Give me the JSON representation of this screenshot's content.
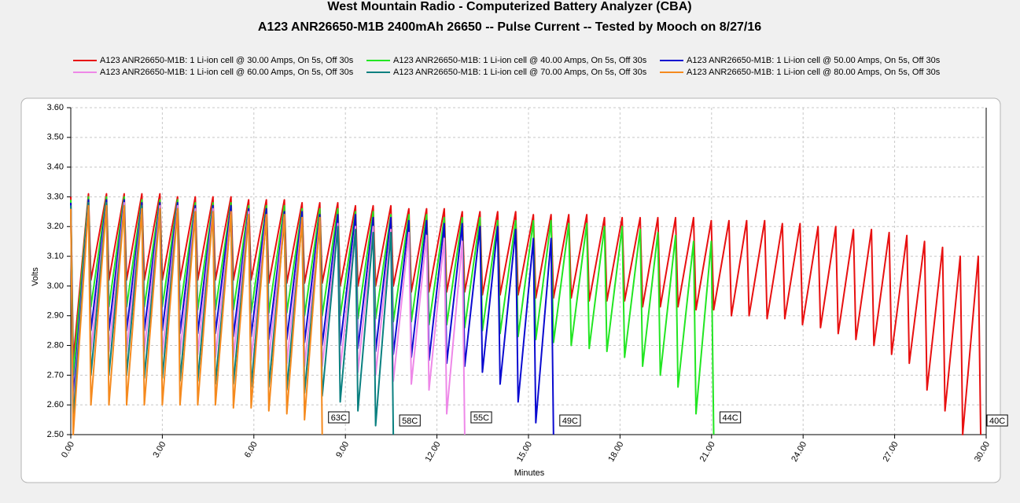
{
  "chart_data": {
    "type": "line",
    "title": "West Mountain Radio - Computerized Battery Analyzer (CBA)",
    "subtitle": "A123 ANR26650-M1B 2400mAh 26650 -- Pulse Current -- Tested by Mooch on 8/27/16",
    "x_label": "Minutes",
    "y_label": "Volts",
    "xlim": [
      0,
      30
    ],
    "ylim": [
      2.5,
      3.6
    ],
    "grid": true,
    "xticks": [
      {
        "value": 0,
        "label": "0.00"
      },
      {
        "value": 3,
        "label": "3.00"
      },
      {
        "value": 6,
        "label": "6.00"
      },
      {
        "value": 9,
        "label": "9.00"
      },
      {
        "value": 12,
        "label": "12.00"
      },
      {
        "value": 15,
        "label": "15.00"
      },
      {
        "value": 18,
        "label": "18.00"
      },
      {
        "value": 21,
        "label": "21.00"
      },
      {
        "value": 24,
        "label": "24.00"
      },
      {
        "value": 27,
        "label": "27.00"
      },
      {
        "value": 30,
        "label": "30.00"
      }
    ],
    "yticks": [
      {
        "value": 2.5,
        "label": "2.50"
      },
      {
        "value": 2.6,
        "label": "2.60"
      },
      {
        "value": 2.7,
        "label": "2.70"
      },
      {
        "value": 2.8,
        "label": "2.80"
      },
      {
        "value": 2.9,
        "label": "2.90"
      },
      {
        "value": 3.0,
        "label": "3.00"
      },
      {
        "value": 3.1,
        "label": "3.10"
      },
      {
        "value": 3.2,
        "label": "3.20"
      },
      {
        "value": 3.3,
        "label": "3.30"
      },
      {
        "value": 3.4,
        "label": "3.40"
      },
      {
        "value": 3.5,
        "label": "3.50"
      },
      {
        "value": 3.6,
        "label": "3.60"
      }
    ],
    "x": [
      0.0,
      0.08,
      0.58,
      0.66,
      1.17,
      1.25,
      1.75,
      1.83,
      2.33,
      2.41,
      2.92,
      3.0,
      3.5,
      3.58,
      4.08,
      4.16,
      4.66,
      4.74,
      5.25,
      5.33,
      5.83,
      5.91,
      6.41,
      6.49,
      7.0,
      7.08,
      7.58,
      7.66,
      8.16,
      8.24,
      8.75,
      8.83,
      9.33,
      9.41,
      9.91,
      9.99,
      10.49,
      10.57,
      11.08,
      11.16,
      11.66,
      11.74,
      12.24,
      12.32,
      12.83,
      12.91,
      13.41,
      13.49,
      13.99,
      14.07,
      14.58,
      14.66,
      15.16,
      15.24,
      15.74,
      15.82,
      16.32,
      16.4,
      16.91,
      16.99,
      17.49,
      17.57,
      18.07,
      18.15,
      18.66,
      18.74,
      19.24,
      19.32,
      19.82,
      19.9,
      20.41,
      20.49,
      20.99,
      21.07,
      21.57,
      21.65,
      22.15,
      22.23,
      22.74,
      22.82,
      23.32,
      23.4,
      23.9,
      23.98,
      24.49,
      24.57,
      25.07,
      25.15,
      25.65,
      25.73,
      26.24,
      26.32,
      26.82,
      26.9,
      27.4,
      27.48,
      27.98,
      28.06,
      28.57,
      28.65,
      29.15,
      29.23,
      29.74,
      29.82
    ],
    "series": [
      {
        "name": "A123 ANR26650-M1B: 1 Li-ion cell @ 30.00 Amps, On 5s, Off 30s",
        "color": "#e81010",
        "end_label": "40C",
        "values": [
          3.3,
          2.75,
          3.31,
          3.02,
          3.31,
          3.02,
          3.31,
          3.02,
          3.31,
          3.02,
          3.31,
          3.02,
          3.3,
          3.02,
          3.3,
          3.02,
          3.3,
          3.02,
          3.3,
          3.02,
          3.29,
          3.02,
          3.29,
          3.01,
          3.29,
          3.01,
          3.28,
          3.01,
          3.28,
          3.01,
          3.28,
          3.0,
          3.27,
          3.0,
          3.27,
          3.0,
          3.27,
          3.0,
          3.26,
          2.98,
          3.26,
          2.98,
          3.26,
          2.98,
          3.25,
          2.98,
          3.25,
          2.97,
          3.25,
          2.97,
          3.25,
          2.97,
          3.24,
          2.96,
          3.24,
          2.96,
          3.24,
          2.96,
          3.24,
          2.95,
          3.23,
          2.95,
          3.23,
          2.95,
          3.23,
          2.93,
          3.23,
          2.93,
          3.23,
          2.93,
          3.23,
          2.92,
          3.22,
          2.92,
          3.22,
          2.9,
          3.22,
          2.9,
          3.22,
          2.89,
          3.21,
          2.89,
          3.21,
          2.87,
          3.2,
          2.86,
          3.2,
          2.84,
          3.19,
          2.82,
          3.19,
          2.8,
          3.18,
          2.77,
          3.17,
          2.74,
          3.15,
          2.65,
          3.13,
          2.58,
          3.1,
          2.5,
          3.1,
          2.5
        ]
      },
      {
        "name": "A123 ANR26650-M1B: 1 Li-ion cell @ 40.00 Amps, On 5s, Off 30s",
        "color": "#22e622",
        "end_label": "44C",
        "values": [
          3.29,
          2.7,
          3.3,
          2.93,
          3.3,
          2.93,
          3.3,
          2.93,
          3.29,
          2.93,
          3.29,
          2.93,
          3.29,
          2.92,
          3.28,
          2.92,
          3.28,
          2.92,
          3.28,
          2.92,
          3.27,
          2.91,
          3.27,
          2.91,
          3.27,
          2.91,
          3.26,
          2.9,
          3.26,
          2.9,
          3.26,
          2.9,
          3.25,
          2.89,
          3.25,
          2.89,
          3.24,
          2.88,
          3.24,
          2.88,
          3.24,
          2.87,
          3.23,
          2.87,
          3.23,
          2.86,
          3.23,
          2.85,
          3.22,
          2.84,
          3.22,
          2.83,
          3.22,
          2.82,
          3.22,
          2.81,
          3.21,
          2.8,
          3.21,
          2.79,
          3.2,
          2.78,
          3.2,
          2.76,
          3.19,
          2.73,
          3.18,
          2.7,
          3.17,
          2.66,
          3.15,
          2.57,
          3.15,
          2.5,
          null,
          null,
          null,
          null,
          null,
          null,
          null,
          null,
          null,
          null,
          null,
          null,
          null,
          null,
          null,
          null,
          null,
          null,
          null,
          null,
          null,
          null,
          null,
          null,
          null,
          null,
          null,
          null,
          null,
          null
        ]
      },
      {
        "name": "A123 ANR26650-M1B: 1 Li-ion cell @ 50.00 Amps, On 5s, Off 30s",
        "color": "#0a0ad0",
        "end_label": "49C",
        "values": [
          3.28,
          2.62,
          3.29,
          2.85,
          3.29,
          2.85,
          3.29,
          2.85,
          3.28,
          2.85,
          3.28,
          2.85,
          3.28,
          2.84,
          3.27,
          2.84,
          3.27,
          2.84,
          3.27,
          2.83,
          3.26,
          2.83,
          3.26,
          2.82,
          3.25,
          2.82,
          3.25,
          2.81,
          3.24,
          2.8,
          3.24,
          2.8,
          3.24,
          2.79,
          3.23,
          2.78,
          3.23,
          2.77,
          3.22,
          2.76,
          3.22,
          2.75,
          3.21,
          2.74,
          3.21,
          2.73,
          3.2,
          2.71,
          3.2,
          2.67,
          3.19,
          2.61,
          3.16,
          2.54,
          3.16,
          2.5,
          null,
          null,
          null,
          null,
          null,
          null,
          null,
          null,
          null,
          null,
          null,
          null,
          null,
          null,
          null,
          null,
          null,
          null,
          null,
          null,
          null,
          null,
          null,
          null,
          null,
          null,
          null,
          null,
          null,
          null,
          null,
          null,
          null,
          null,
          null,
          null,
          null,
          null,
          null,
          null,
          null,
          null,
          null,
          null,
          null,
          null,
          null,
          null
        ]
      },
      {
        "name": "A123 ANR26650-M1B: 1 Li-ion cell @ 60.00 Amps, On 5s, Off 30s",
        "color": "#ee88e8",
        "end_label": "55C",
        "values": [
          3.27,
          2.58,
          3.28,
          2.78,
          3.28,
          2.78,
          3.28,
          2.78,
          3.27,
          2.78,
          3.27,
          2.77,
          3.27,
          2.77,
          3.26,
          2.77,
          3.26,
          2.76,
          3.25,
          2.76,
          3.25,
          2.75,
          3.24,
          2.75,
          3.24,
          2.74,
          3.23,
          2.73,
          3.22,
          2.73,
          3.21,
          2.72,
          3.2,
          2.71,
          3.2,
          2.7,
          3.19,
          2.68,
          3.18,
          2.67,
          3.17,
          2.65,
          3.16,
          2.57,
          3.15,
          2.5,
          null,
          null,
          null,
          null,
          null,
          null,
          null,
          null,
          null,
          null,
          null,
          null,
          null,
          null,
          null,
          null,
          null,
          null,
          null,
          null,
          null,
          null,
          null,
          null,
          null,
          null,
          null,
          null,
          null,
          null,
          null,
          null,
          null,
          null,
          null,
          null,
          null,
          null,
          null,
          null,
          null,
          null,
          null,
          null,
          null,
          null,
          null,
          null,
          null,
          null,
          null,
          null,
          null,
          null,
          null,
          null,
          null,
          null
        ]
      },
      {
        "name": "A123 ANR26650-M1B: 1 Li-ion cell @ 70.00 Amps, On 5s, Off 30s",
        "color": "#0a8080",
        "end_label": "58C",
        "values": [
          3.27,
          2.55,
          3.28,
          2.7,
          3.28,
          2.7,
          3.27,
          2.7,
          3.27,
          2.69,
          3.26,
          2.69,
          3.26,
          2.68,
          3.25,
          2.68,
          3.25,
          2.67,
          3.24,
          2.67,
          3.24,
          2.66,
          3.23,
          2.66,
          3.22,
          2.65,
          3.22,
          2.64,
          3.21,
          2.63,
          3.2,
          2.61,
          3.19,
          2.58,
          3.18,
          2.53,
          3.18,
          2.5,
          null,
          null,
          null,
          null,
          null,
          null,
          null,
          null,
          null,
          null,
          null,
          null,
          null,
          null,
          null,
          null,
          null,
          null,
          null,
          null,
          null,
          null,
          null,
          null,
          null,
          null,
          null,
          null,
          null,
          null,
          null,
          null,
          null,
          null,
          null,
          null,
          null,
          null,
          null,
          null,
          null,
          null,
          null,
          null,
          null,
          null,
          null,
          null,
          null,
          null,
          null,
          null,
          null,
          null,
          null,
          null,
          null,
          null,
          null,
          null,
          null,
          null,
          null,
          null,
          null,
          null
        ]
      },
      {
        "name": "A123 ANR26650-M1B: 1 Li-ion cell @ 80.00 Amps, On 5s, Off 30s",
        "color": "#f58a1e",
        "end_label": "63C",
        "values": [
          3.26,
          2.5,
          3.27,
          2.6,
          3.27,
          2.6,
          3.27,
          2.6,
          3.26,
          2.6,
          3.26,
          2.6,
          3.26,
          2.6,
          3.25,
          2.6,
          3.25,
          2.6,
          3.25,
          2.59,
          3.24,
          2.59,
          3.24,
          2.58,
          3.24,
          2.57,
          3.23,
          2.55,
          3.23,
          2.5,
          null,
          null,
          null,
          null,
          null,
          null,
          null,
          null,
          null,
          null,
          null,
          null,
          null,
          null,
          null,
          null,
          null,
          null,
          null,
          null,
          null,
          null,
          null,
          null,
          null,
          null,
          null,
          null,
          null,
          null,
          null,
          null,
          null,
          null,
          null,
          null,
          null,
          null,
          null,
          null,
          null,
          null,
          null,
          null,
          null,
          null,
          null,
          null,
          null,
          null,
          null,
          null,
          null,
          null,
          null,
          null,
          null,
          null,
          null,
          null,
          null,
          null,
          null,
          null,
          null,
          null,
          null,
          null,
          null,
          null,
          null,
          null,
          null,
          null
        ]
      }
    ]
  }
}
